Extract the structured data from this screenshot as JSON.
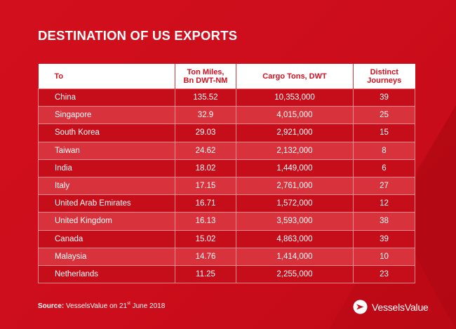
{
  "title": "DESTINATION OF US EXPORTS",
  "table": {
    "headers": {
      "to": "To",
      "ton_miles_line1": "Ton Miles,",
      "ton_miles_line2": "Bn DWT-NM",
      "cargo_tons": "Cargo Tons, DWT",
      "journeys_line1": "Distinct",
      "journeys_line2": "Journeys"
    },
    "rows": [
      {
        "to": "China",
        "ton_miles": "135.52",
        "cargo_tons": "10,353,000",
        "journeys": "39"
      },
      {
        "to": "Singapore",
        "ton_miles": "32.9",
        "cargo_tons": "4,015,000",
        "journeys": "25"
      },
      {
        "to": "South Korea",
        "ton_miles": "29.03",
        "cargo_tons": "2,921,000",
        "journeys": "15"
      },
      {
        "to": "Taiwan",
        "ton_miles": "24.62",
        "cargo_tons": "2,132,000",
        "journeys": "8"
      },
      {
        "to": "India",
        "ton_miles": "18.02",
        "cargo_tons": "1,449,000",
        "journeys": "6"
      },
      {
        "to": "Italy",
        "ton_miles": "17.15",
        "cargo_tons": "2,761,000",
        "journeys": "27"
      },
      {
        "to": "United Arab Emirates",
        "ton_miles": "16.71",
        "cargo_tons": "1,572,000",
        "journeys": "12"
      },
      {
        "to": "United Kingdom",
        "ton_miles": "16.13",
        "cargo_tons": "3,593,000",
        "journeys": "38"
      },
      {
        "to": "Canada",
        "ton_miles": "15.02",
        "cargo_tons": "4,863,000",
        "journeys": "39"
      },
      {
        "to": "Malaysia",
        "ton_miles": "14.76",
        "cargo_tons": "1,414,000",
        "journeys": "10"
      },
      {
        "to": "Netherlands",
        "ton_miles": "11.25",
        "cargo_tons": "2,255,000",
        "journeys": "23"
      }
    ]
  },
  "source": {
    "label": "Source:",
    "text_before": " VesselsValue on 21",
    "superscript": "st",
    "text_after": " June 2018"
  },
  "brand": {
    "name": "VesselsValue",
    "logo_icon": "vesselsvalue-logo-icon"
  },
  "colors": {
    "background": "#cc0d1b",
    "header_text": "#d4101e",
    "row_dark": "#c60d1a",
    "row_light": "#d8323c"
  }
}
